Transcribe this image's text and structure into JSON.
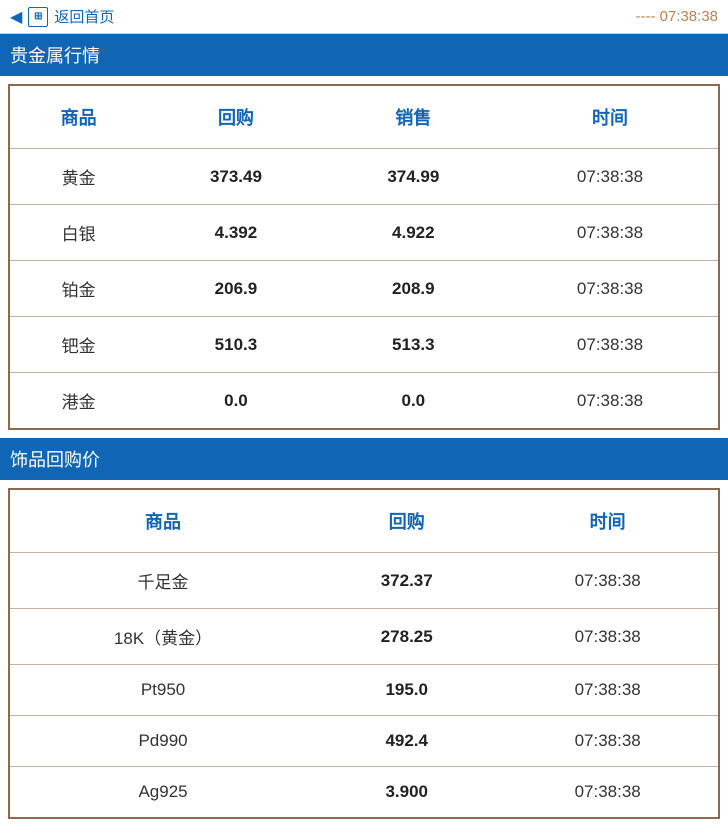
{
  "header": {
    "back_label": "返回首页",
    "time_prefix": "----",
    "time": "07:38:38"
  },
  "section1": {
    "title": "贵金属行情",
    "columns": [
      "商品",
      "回购",
      "销售",
      "时间"
    ],
    "rows": [
      {
        "product": "黄金",
        "buy": "373.49",
        "sell": "374.99",
        "time": "07:38:38"
      },
      {
        "product": "白银",
        "buy": "4.392",
        "sell": "4.922",
        "time": "07:38:38"
      },
      {
        "product": "铂金",
        "buy": "206.9",
        "sell": "208.9",
        "time": "07:38:38"
      },
      {
        "product": "钯金",
        "buy": "510.3",
        "sell": "513.3",
        "time": "07:38:38"
      },
      {
        "product": "港金",
        "buy": "0.0",
        "sell": "0.0",
        "time": "07:38:38"
      }
    ]
  },
  "section2": {
    "title": "饰品回购价",
    "columns": [
      "商品",
      "回购",
      "时间"
    ],
    "rows": [
      {
        "product": "千足金",
        "buy": "372.37",
        "time": "07:38:38"
      },
      {
        "product": "18K（黄金）",
        "buy": "278.25",
        "time": "07:38:38"
      },
      {
        "product": "Pt950",
        "buy": "195.0",
        "time": "07:38:38"
      },
      {
        "product": "Pd990",
        "buy": "492.4",
        "time": "07:38:38"
      },
      {
        "product": "Ag925",
        "buy": "3.900",
        "time": "07:38:38"
      }
    ]
  },
  "colors": {
    "primary": "#1066b5",
    "border": "#8b6a4f",
    "row_border": "#c5b5a5",
    "time_color": "#c08050",
    "text": "#333333",
    "background": "#ffffff"
  }
}
